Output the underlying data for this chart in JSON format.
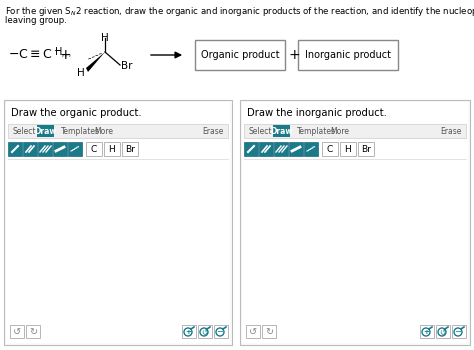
{
  "background_color": "#ffffff",
  "text_color": "#000000",
  "teal_color": "#1a7a8a",
  "border_color": "#cccccc",
  "panel1_title": "Draw the organic product.",
  "panel2_title": "Draw the inorganic product.",
  "reaction_box1": "Organic product",
  "reaction_box2": "Inorganic product",
  "toolbar_items_left": [
    "Select",
    "Draw",
    "Templates",
    "More"
  ],
  "toolbar_erase": "Erase",
  "atom_buttons": [
    "C",
    "H",
    "Br"
  ]
}
